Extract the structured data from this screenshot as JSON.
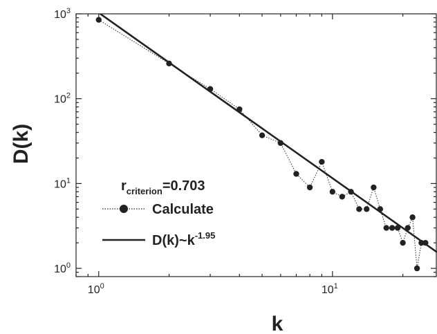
{
  "chart_data": {
    "type": "scatter",
    "xlabel": "k",
    "ylabel": "D(k)",
    "x_scale": "log",
    "y_scale": "log",
    "xlim": [
      0.8,
      28
    ],
    "ylim": [
      0.8,
      1000
    ],
    "x_ticks": [
      {
        "value": 1,
        "base": "10",
        "exp": "0"
      },
      {
        "value": 10,
        "base": "10",
        "exp": "1"
      }
    ],
    "y_ticks": [
      {
        "value": 1,
        "base": "10",
        "exp": "0"
      },
      {
        "value": 10,
        "base": "10",
        "exp": "1"
      },
      {
        "value": 100,
        "base": "10",
        "exp": "2"
      },
      {
        "value": 1000,
        "base": "10",
        "exp": "3"
      }
    ],
    "grid": false,
    "legend_position": "bottom-left",
    "annotation": {
      "prefix": "r",
      "subscript": "criterion",
      "value_text": "=0.703"
    },
    "series": [
      {
        "name": "Calculate",
        "marker": "circle",
        "line": "dotted",
        "color": "#222222",
        "x": [
          1,
          2,
          3,
          4,
          5,
          6,
          7,
          8,
          9,
          10,
          11,
          12,
          13,
          14,
          15,
          16,
          17,
          18,
          19,
          20,
          21,
          22,
          23,
          24,
          25
        ],
        "y": [
          850,
          260,
          130,
          75,
          37,
          30,
          13,
          9,
          18,
          8,
          7,
          8,
          5,
          5,
          9,
          5,
          3,
          3,
          3,
          2,
          3,
          4,
          1,
          2,
          2
        ]
      },
      {
        "name_parts": {
          "main": "D(k)~k",
          "sup": "-1.95"
        },
        "line": "solid",
        "color": "#222222",
        "fit": {
          "coefficient": 1030,
          "exponent": -1.95,
          "x_range": [
            0.94,
            28
          ]
        }
      }
    ]
  }
}
